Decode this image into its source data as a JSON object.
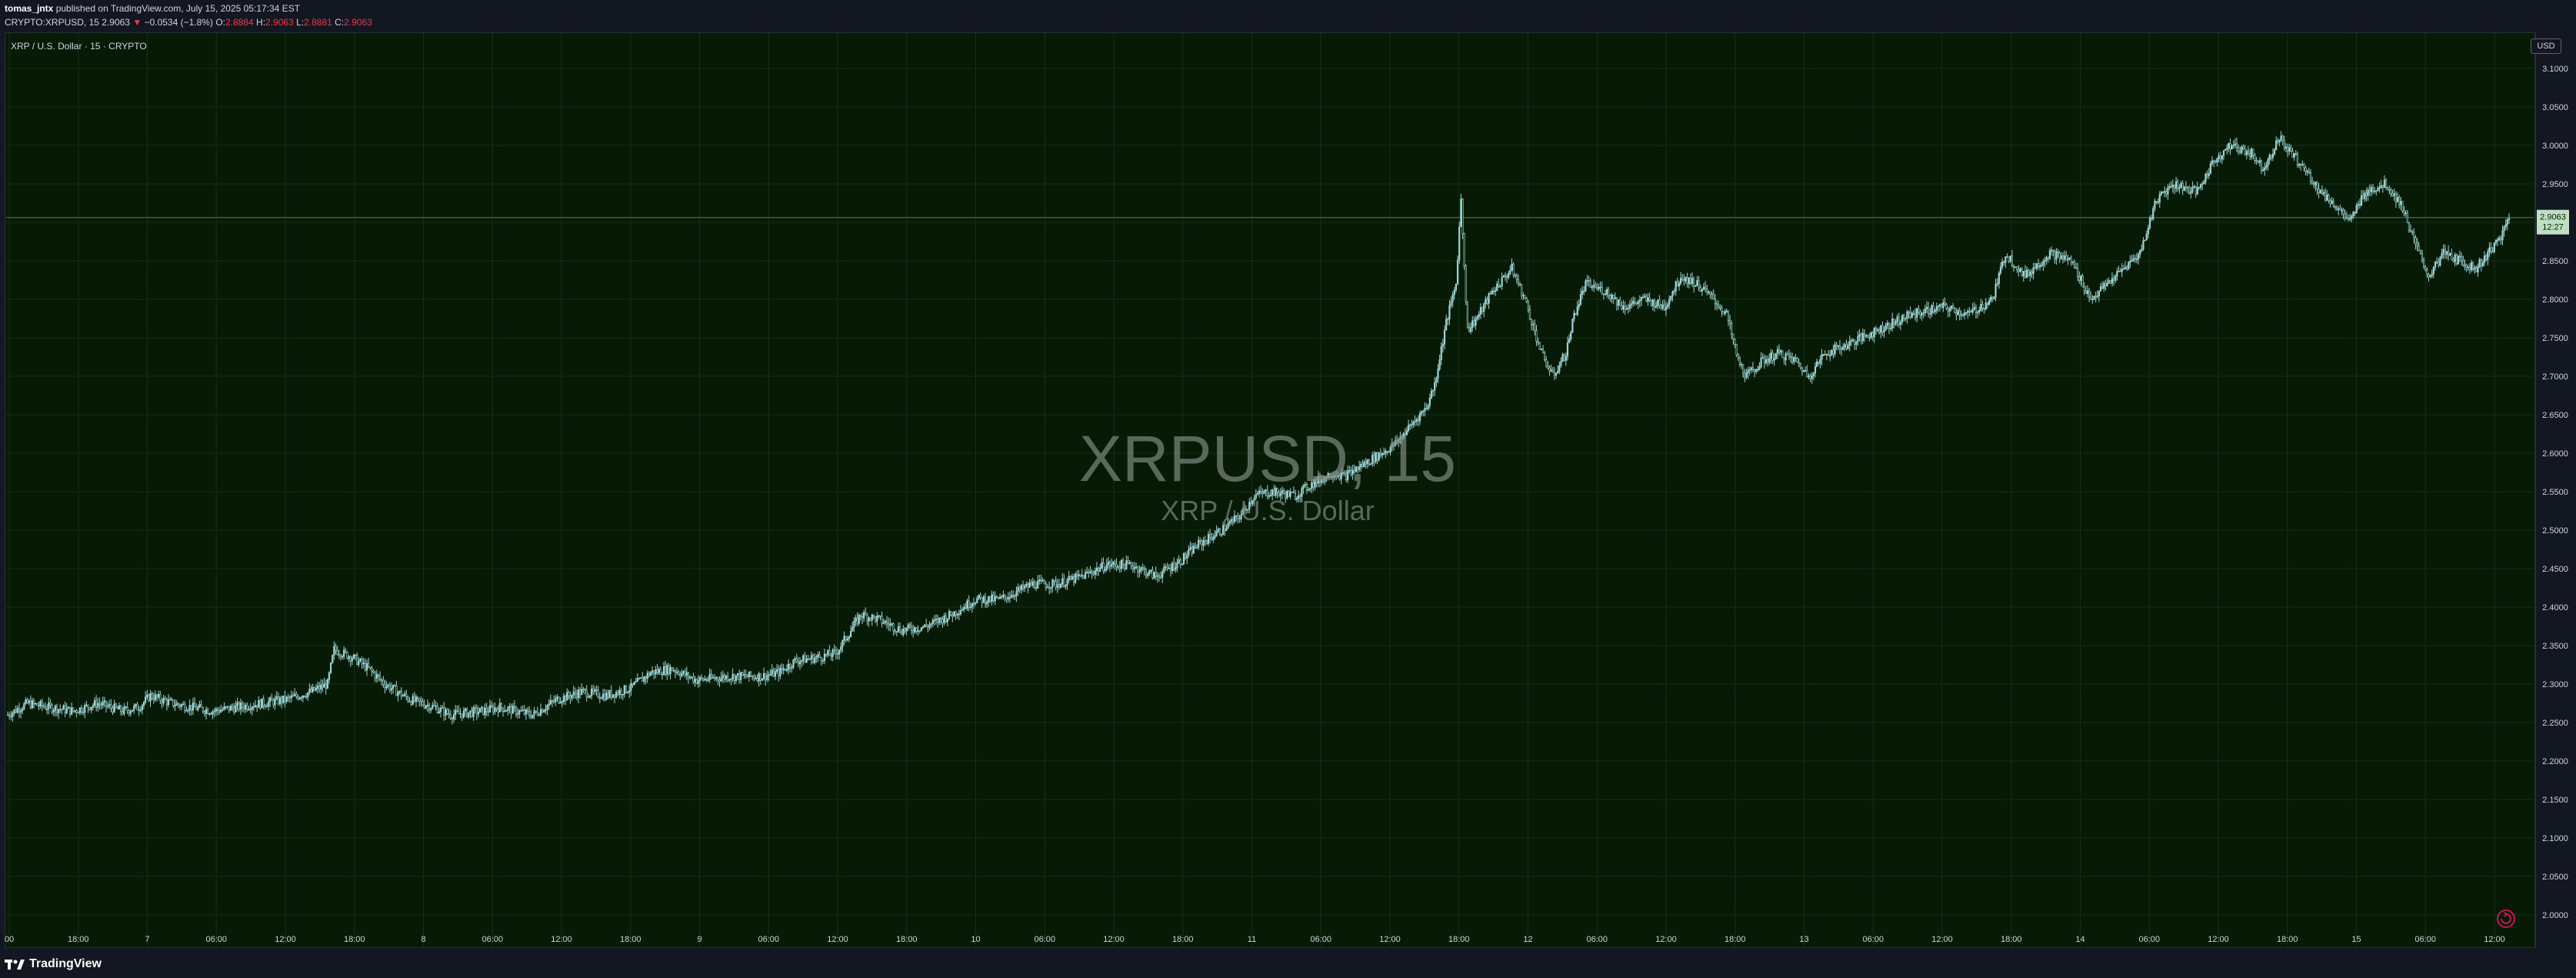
{
  "header": {
    "author": "tomas_jntx",
    "published_text": "published on TradingView.com, July 15, 2025 05:17:34 EST",
    "symbol_line": "CRYPTO:XRPUSD, 15",
    "last_price": "2.9063",
    "change_arrow": "▼",
    "change_text": "−0.0534 (−1.8%)",
    "o_label": "O:",
    "o_value": "2.8884",
    "h_label": "H:",
    "h_value": "2.9063",
    "l_label": "L:",
    "l_value": "2.8881",
    "c_label": "C:",
    "c_value": "2.9063"
  },
  "chart_title": "XRP / U.S. Dollar · 15 · CRYPTO",
  "watermark": {
    "symbol": "XRPUSD, 15",
    "name": "XRP / U.S. Dollar"
  },
  "currency_badge": "USD",
  "last_price_tag": {
    "price": "2.9063",
    "countdown": "12:27"
  },
  "colors": {
    "background": "#061a06",
    "candle": "#9fd3d6",
    "grid": "#123012",
    "price_line": "#5b7a5b",
    "text": "#d1d4dc",
    "down": "#f23645"
  },
  "footer": {
    "brand": "TradingView"
  },
  "chart_data": {
    "type": "candlestick",
    "title": "XRP / U.S. Dollar · 15 · CRYPTO",
    "ylim": [
      1.97,
      3.12
    ],
    "y_ticks": [
      "3.1000",
      "3.0500",
      "3.0000",
      "2.9500",
      "2.9000",
      "2.8500",
      "2.8000",
      "2.7500",
      "2.7000",
      "2.6500",
      "2.6000",
      "2.5500",
      "2.5000",
      "2.4500",
      "2.4000",
      "2.3500",
      "2.3000",
      "2.2500",
      "2.2000",
      "2.1500",
      "2.1000",
      "2.0500",
      "2.0000"
    ],
    "x_ticks": [
      "00",
      "18:00",
      "7",
      "06:00",
      "12:00",
      "18:00",
      "8",
      "06:00",
      "12:00",
      "18:00",
      "9",
      "06:00",
      "12:00",
      "18:00",
      "10",
      "06:00",
      "12:00",
      "18:00",
      "11",
      "06:00",
      "12:00",
      "18:00",
      "12",
      "06:00",
      "12:00",
      "18:00",
      "13",
      "06:00",
      "12:00",
      "18:00",
      "14",
      "06:00",
      "12:00",
      "18:00",
      "15",
      "06:00",
      "12:00"
    ],
    "series": [
      {
        "points": [
          [
            0,
            2.26
          ],
          [
            12,
            2.275
          ],
          [
            25,
            2.27
          ],
          [
            40,
            2.265
          ],
          [
            55,
            2.275
          ],
          [
            70,
            2.265
          ],
          [
            80,
            2.27
          ],
          [
            87,
            2.285
          ],
          [
            100,
            2.275
          ],
          [
            112,
            2.27
          ],
          [
            125,
            2.265
          ],
          [
            140,
            2.27
          ],
          [
            155,
            2.275
          ],
          [
            170,
            2.28
          ],
          [
            185,
            2.29
          ],
          [
            195,
            2.3
          ],
          [
            199,
            2.345
          ],
          [
            210,
            2.335
          ],
          [
            220,
            2.32
          ],
          [
            230,
            2.3
          ],
          [
            245,
            2.28
          ],
          [
            260,
            2.27
          ],
          [
            270,
            2.26
          ],
          [
            290,
            2.265
          ],
          [
            300,
            2.27
          ],
          [
            320,
            2.26
          ],
          [
            335,
            2.28
          ],
          [
            350,
            2.29
          ],
          [
            365,
            2.285
          ],
          [
            380,
            2.295
          ],
          [
            392,
            2.315
          ],
          [
            405,
            2.32
          ],
          [
            420,
            2.305
          ],
          [
            440,
            2.31
          ],
          [
            460,
            2.31
          ],
          [
            470,
            2.315
          ],
          [
            480,
            2.33
          ],
          [
            495,
            2.335
          ],
          [
            505,
            2.34
          ],
          [
            520,
            2.39
          ],
          [
            530,
            2.385
          ],
          [
            545,
            2.37
          ],
          [
            560,
            2.375
          ],
          [
            575,
            2.39
          ],
          [
            590,
            2.41
          ],
          [
            605,
            2.41
          ],
          [
            615,
            2.42
          ],
          [
            625,
            2.43
          ],
          [
            640,
            2.43
          ],
          [
            655,
            2.44
          ],
          [
            670,
            2.455
          ],
          [
            685,
            2.455
          ],
          [
            700,
            2.44
          ],
          [
            715,
            2.46
          ],
          [
            725,
            2.48
          ],
          [
            740,
            2.5
          ],
          [
            752,
            2.52
          ],
          [
            760,
            2.545
          ],
          [
            770,
            2.55
          ],
          [
            785,
            2.545
          ],
          [
            795,
            2.56
          ],
          [
            808,
            2.575
          ],
          [
            815,
            2.57
          ],
          [
            830,
            2.59
          ],
          [
            845,
            2.61
          ],
          [
            855,
            2.635
          ],
          [
            865,
            2.66
          ],
          [
            870,
            2.69
          ],
          [
            877,
            2.77
          ],
          [
            883,
            2.82
          ],
          [
            886,
            2.93
          ],
          [
            890,
            2.76
          ],
          [
            897,
            2.78
          ],
          [
            905,
            2.81
          ],
          [
            917,
            2.84
          ],
          [
            925,
            2.8
          ],
          [
            935,
            2.73
          ],
          [
            942,
            2.7
          ],
          [
            950,
            2.73
          ],
          [
            955,
            2.78
          ],
          [
            962,
            2.82
          ],
          [
            975,
            2.81
          ],
          [
            985,
            2.79
          ],
          [
            998,
            2.8
          ],
          [
            1010,
            2.79
          ],
          [
            1020,
            2.83
          ],
          [
            1030,
            2.82
          ],
          [
            1040,
            2.8
          ],
          [
            1048,
            2.78
          ],
          [
            1055,
            2.72
          ],
          [
            1060,
            2.7
          ],
          [
            1070,
            2.72
          ],
          [
            1080,
            2.73
          ],
          [
            1090,
            2.72
          ],
          [
            1098,
            2.7
          ],
          [
            1108,
            2.73
          ],
          [
            1120,
            2.74
          ],
          [
            1140,
            2.76
          ],
          [
            1160,
            2.78
          ],
          [
            1180,
            2.79
          ],
          [
            1195,
            2.78
          ],
          [
            1210,
            2.8
          ],
          [
            1218,
            2.86
          ],
          [
            1230,
            2.83
          ],
          [
            1245,
            2.86
          ],
          [
            1258,
            2.85
          ],
          [
            1270,
            2.8
          ],
          [
            1285,
            2.83
          ],
          [
            1300,
            2.86
          ],
          [
            1310,
            2.93
          ],
          [
            1320,
            2.95
          ],
          [
            1335,
            2.94
          ],
          [
            1345,
            2.98
          ],
          [
            1355,
            3.0
          ],
          [
            1368,
            2.99
          ],
          [
            1375,
            2.97
          ],
          [
            1385,
            3.01
          ],
          [
            1392,
            2.99
          ],
          [
            1400,
            2.97
          ],
          [
            1410,
            2.94
          ],
          [
            1420,
            2.92
          ],
          [
            1428,
            2.9
          ],
          [
            1437,
            2.94
          ],
          [
            1450,
            2.95
          ],
          [
            1460,
            2.92
          ],
          [
            1468,
            2.87
          ],
          [
            1476,
            2.83
          ],
          [
            1485,
            2.86
          ],
          [
            1495,
            2.85
          ],
          [
            1505,
            2.84
          ],
          [
            1512,
            2.86
          ],
          [
            1520,
            2.88
          ],
          [
            1525,
            2.9063
          ]
        ]
      }
    ]
  }
}
